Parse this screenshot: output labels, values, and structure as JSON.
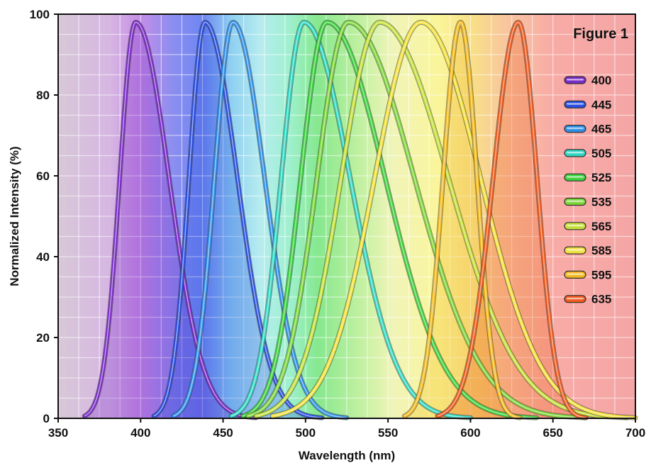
{
  "chart_data": {
    "type": "line",
    "title": "Figure 1",
    "xlabel": "Wavelength (nm)",
    "ylabel": "Normalized Intensity (%)",
    "xlim": [
      350,
      700
    ],
    "ylim": [
      0,
      100
    ],
    "xticks": [
      350,
      400,
      450,
      500,
      550,
      600,
      650,
      700
    ],
    "yticks": [
      0,
      20,
      40,
      60,
      80,
      100
    ],
    "grid": true,
    "legend_position": "right",
    "background": "visible spectrum gradient",
    "series": [
      {
        "name": "400",
        "peak": 397,
        "peak_value": 98,
        "range": [
          366,
          470
        ],
        "color": "#7a2bc8"
      },
      {
        "name": "445",
        "peak": 439,
        "peak_value": 98,
        "range": [
          408,
          510
        ],
        "color": "#2a4fe0"
      },
      {
        "name": "465",
        "peak": 456,
        "peak_value": 98,
        "range": [
          420,
          525
        ],
        "color": "#2f8fe8"
      },
      {
        "name": "505",
        "peak": 499,
        "peak_value": 98,
        "range": [
          455,
          600
        ],
        "color": "#2fd6c2"
      },
      {
        "name": "525",
        "peak": 513,
        "peak_value": 98,
        "range": [
          462,
          640
        ],
        "color": "#3cd13c"
      },
      {
        "name": "535",
        "peak": 526,
        "peak_value": 98,
        "range": [
          465,
          670
        ],
        "color": "#7cd63a"
      },
      {
        "name": "565",
        "peak": 545,
        "peak_value": 98,
        "range": [
          470,
          695
        ],
        "color": "#c4e03a"
      },
      {
        "name": "585",
        "peak": 570,
        "peak_value": 98,
        "range": [
          480,
          700
        ],
        "color": "#f2e03c"
      },
      {
        "name": "595",
        "peak": 594,
        "peak_value": 98,
        "range": [
          560,
          630
        ],
        "color": "#f0b820"
      },
      {
        "name": "635",
        "peak": 629,
        "peak_value": 98,
        "range": [
          580,
          670
        ],
        "color": "#ee5a1e"
      }
    ]
  }
}
